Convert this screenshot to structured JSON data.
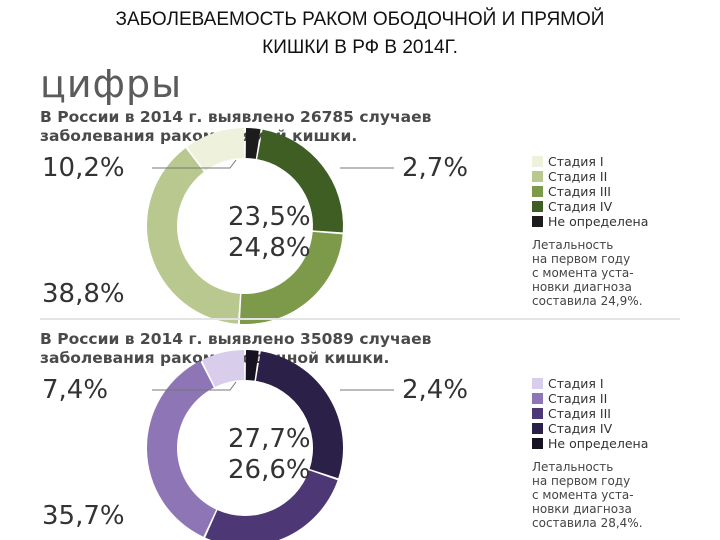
{
  "title": {
    "line1": "ЗАБОЛЕВАЕМОСТЬ РАКОМ ОБОДОЧНОЙ И ПРЯМОЙ",
    "line2": "КИШКИ В РФ В 2014Г."
  },
  "heading": "цифры",
  "chart_data": [
    {
      "type": "pie",
      "donut": true,
      "intro_line1": "В России в 2014 г. выявлено 26785 случаев",
      "intro_line2": "заболевания раком прямой кишки.",
      "categories": [
        "Стадия I",
        "Стадия II",
        "Стадия III",
        "Стадия IV",
        "Не определена"
      ],
      "values": [
        10.2,
        38.8,
        24.8,
        23.5,
        2.7
      ],
      "value_labels": [
        "10,2%",
        "38,8%",
        "24,8%",
        "23,5%",
        "2,7%"
      ],
      "colors": [
        "#eef2dc",
        "#b8c88e",
        "#7d9a4b",
        "#3f5e24",
        "#1c1c1c"
      ],
      "legend_position": "right",
      "note_lines": [
        "Летальность",
        "на первом году",
        "с момента уста-",
        "новки диагноза",
        "составила 24,9%."
      ]
    },
    {
      "type": "pie",
      "donut": true,
      "intro_line1": "В России в 2014 г. выявлено 35089 случаев",
      "intro_line2": "заболевания раком ободочной кишки.",
      "categories": [
        "Стадия I",
        "Стадия II",
        "Стадия III",
        "Стадия IV",
        "Не определена"
      ],
      "values": [
        7.4,
        35.7,
        26.6,
        27.7,
        2.4
      ],
      "value_labels": [
        "7,4%",
        "35,7%",
        "26,6%",
        "27,7%",
        "2,4%"
      ],
      "colors": [
        "#d9cdec",
        "#8e75b6",
        "#4d3875",
        "#2b2048",
        "#161222"
      ],
      "legend_position": "right",
      "note_lines": [
        "Летальность",
        "на первом году",
        "с момента уста-",
        "новки диагноза",
        "составила 28,4%."
      ]
    }
  ]
}
